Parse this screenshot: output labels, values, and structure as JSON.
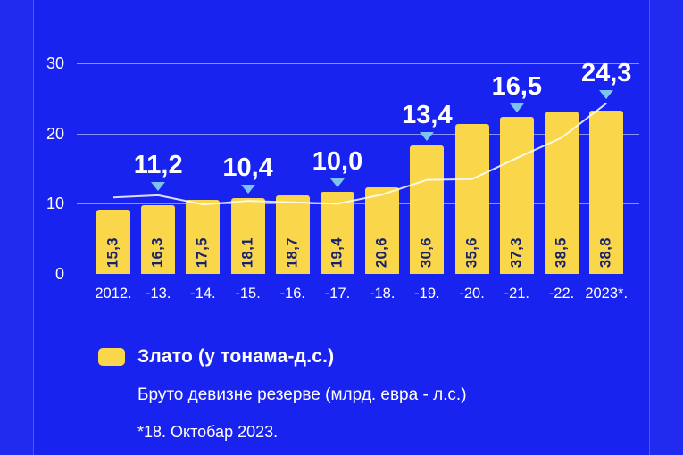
{
  "colors": {
    "background": "#1823F0",
    "bar_fill": "#F9D64A",
    "bar_value_text": "#17216B",
    "line": "#FFFFFF",
    "marker_triangle": "#7CC3F0",
    "axis_text": "#FFFFFF"
  },
  "chart_data": {
    "type": "bar",
    "title": "",
    "categories": [
      "2012.",
      "-13.",
      "-14.",
      "-15.",
      "-16.",
      "-17.",
      "-18.",
      "-19.",
      "-20.",
      "-21.",
      "-22.",
      "2023*."
    ],
    "series": [
      {
        "name": "Злато (у тонама-д.с.)",
        "type": "bar",
        "axis": "right",
        "values": [
          15.3,
          16.3,
          17.5,
          18.1,
          18.7,
          19.4,
          20.6,
          30.6,
          35.6,
          37.3,
          38.5,
          38.8
        ],
        "value_labels": [
          "15,3",
          "16,3",
          "17,5",
          "18,1",
          "18,7",
          "19,4",
          "20,6",
          "30,6",
          "35,6",
          "37,3",
          "38,5",
          "38,8"
        ]
      },
      {
        "name": "Бруто девизне резерве (млрд. евра - л.с.)",
        "type": "line",
        "axis": "left",
        "values": [
          10.9,
          11.2,
          9.9,
          10.4,
          10.2,
          10.0,
          11.3,
          13.4,
          13.5,
          16.5,
          19.4,
          24.3
        ],
        "point_labels": [
          {
            "index": 1,
            "label": "11,2"
          },
          {
            "index": 3,
            "label": "10,4"
          },
          {
            "index": 5,
            "label": "10,0"
          },
          {
            "index": 7,
            "label": "13,4"
          },
          {
            "index": 9,
            "label": "16,5"
          },
          {
            "index": 11,
            "label": "24,3"
          }
        ]
      }
    ],
    "left_axis": {
      "min": 0,
      "max": 30,
      "ticks": [
        0,
        10,
        20,
        30
      ],
      "tick_labels": [
        "0",
        "10",
        "20",
        "30"
      ]
    },
    "right_axis": {
      "min": 0,
      "max": 50,
      "visible": false
    },
    "grid": true,
    "legend_position": "bottom-left",
    "legend": [
      {
        "swatch": "yellow-square",
        "label": "Злато (у тонама-д.с.)"
      },
      {
        "swatch": "none",
        "label": "Бруто девизне резерве (млрд. евра - л.с.)"
      }
    ],
    "footnote": "*18. Октобар 2023."
  }
}
